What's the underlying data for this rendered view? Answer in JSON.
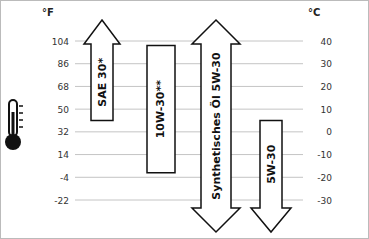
{
  "chart_data": {
    "type": "range",
    "ylabel": "°F",
    "y2label": "°C",
    "ylim": [
      -22,
      104
    ],
    "yticks": [
      -22,
      -4,
      14,
      32,
      50,
      68,
      86,
      104
    ],
    "y2lim": [
      -30,
      40
    ],
    "y2ticks": [
      -30,
      -20,
      -10,
      0,
      10,
      20,
      30,
      40
    ],
    "grid": true,
    "categories": [
      "SAE 30*",
      "10W-30**",
      "Synthetisches Öl 5W-30",
      "5W-30"
    ],
    "series": [
      {
        "axis": "y2",
        "color": "#ffffff",
        "low": [
          5,
          -18,
          null,
          null
        ],
        "high": [
          null,
          38,
          null,
          5
        ]
      }
    ]
  }
}
